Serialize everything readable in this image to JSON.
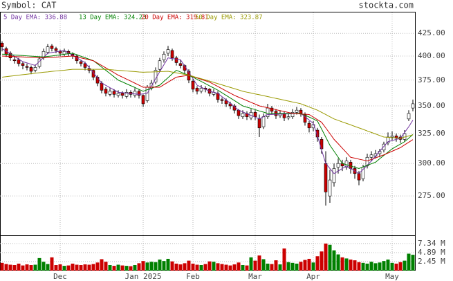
{
  "header": {
    "symbol": "Symbol: CAT",
    "site": "stockta.com"
  },
  "chart_data": [
    {
      "type": "candlestick",
      "categories": [
        null,
        null,
        null,
        null,
        null,
        null,
        null,
        null,
        null,
        null,
        null,
        null,
        null,
        null,
        "Dec",
        null,
        null,
        null,
        null,
        null,
        null,
        null,
        null,
        null,
        null,
        null,
        null,
        null,
        null,
        null,
        null,
        null,
        null,
        null,
        "Jan 2025",
        null,
        null,
        null,
        null,
        null,
        null,
        null,
        null,
        null,
        null,
        null,
        "Feb",
        null,
        null,
        null,
        null,
        null,
        null,
        null,
        null,
        null,
        null,
        null,
        null,
        null,
        null,
        "Mar",
        null,
        null,
        null,
        null,
        null,
        null,
        null,
        null,
        null,
        null,
        null,
        null,
        null,
        "Apr",
        null,
        null,
        null,
        null,
        null,
        null,
        null,
        null,
        null,
        null,
        null,
        null,
        null,
        null,
        null,
        null,
        null,
        null,
        "May",
        null,
        null,
        null,
        null,
        null
      ],
      "open": [
        414,
        408,
        403,
        396,
        396,
        392,
        389,
        388,
        385,
        389,
        398,
        404,
        411,
        408,
        405,
        402,
        405,
        402,
        400,
        394,
        392,
        387,
        385,
        378,
        372,
        366,
        361,
        364,
        360,
        362,
        359,
        363,
        360,
        364,
        360,
        355,
        367,
        373,
        386,
        396,
        403,
        406,
        398,
        392,
        390,
        384,
        374,
        367,
        364,
        367,
        366,
        361,
        362,
        356,
        355,
        352,
        350,
        346,
        340,
        343,
        339,
        344,
        338,
        331,
        340,
        348,
        345,
        341,
        343,
        339,
        340,
        344,
        346,
        342,
        334,
        330,
        328,
        320,
        300,
        275,
        285,
        297,
        300,
        297,
        301,
        296,
        292,
        288,
        298,
        305,
        306,
        308,
        311,
        317,
        322,
        323,
        322,
        320,
        338,
        348
      ],
      "high": [
        416,
        410,
        405,
        400,
        398,
        394,
        392,
        390,
        391,
        399,
        408,
        413,
        413,
        410,
        407,
        408,
        407,
        404,
        402,
        396,
        394,
        390,
        386,
        380,
        374,
        368,
        367,
        366,
        365,
        364,
        366,
        365,
        367,
        366,
        361,
        370,
        375,
        388,
        398,
        405,
        411,
        408,
        400,
        396,
        391,
        386,
        376,
        369,
        370,
        369,
        367,
        366,
        364,
        358,
        357,
        354,
        352,
        347,
        346,
        345,
        347,
        346,
        342,
        343,
        352,
        350,
        347,
        346,
        345,
        343,
        347,
        349,
        348,
        344,
        336,
        336,
        330,
        322,
        310,
        295,
        300,
        304,
        303,
        305,
        303,
        298,
        294,
        299,
        308,
        310,
        311,
        312,
        318,
        326,
        327,
        325,
        324,
        328,
        346,
        356
      ],
      "low": [
        405,
        399,
        395,
        392,
        389,
        386,
        385,
        381,
        383,
        387,
        396,
        402,
        405,
        403,
        400,
        400,
        400,
        397,
        392,
        389,
        385,
        382,
        375,
        369,
        362,
        359,
        359,
        358,
        358,
        357,
        357,
        358,
        358,
        357,
        349,
        353,
        365,
        371,
        384,
        393,
        400,
        395,
        390,
        387,
        382,
        372,
        363,
        361,
        362,
        363,
        359,
        359,
        353,
        352,
        349,
        347,
        343,
        338,
        338,
        337,
        337,
        337,
        322,
        329,
        338,
        342,
        338,
        339,
        336,
        337,
        338,
        342,
        340,
        332,
        326,
        327,
        318,
        308,
        268,
        270,
        282,
        292,
        294,
        295,
        292,
        288,
        283,
        286,
        296,
        302,
        304,
        305,
        309,
        315,
        319,
        318,
        317,
        318,
        336,
        345
      ],
      "close": [
        410,
        402,
        398,
        395,
        392,
        390,
        388,
        384,
        388,
        397,
        405,
        410,
        408,
        406,
        403,
        405,
        403,
        400,
        395,
        392,
        388,
        385,
        378,
        372,
        365,
        362,
        364,
        361,
        362,
        360,
        363,
        361,
        364,
        360,
        352,
        368,
        372,
        385,
        395,
        402,
        407,
        398,
        393,
        390,
        385,
        375,
        366,
        364,
        367,
        366,
        362,
        363,
        356,
        355,
        352,
        350,
        346,
        341,
        343,
        340,
        344,
        340,
        330,
        340,
        348,
        345,
        341,
        343,
        339,
        340,
        344,
        346,
        343,
        335,
        330,
        333,
        322,
        312,
        278,
        287,
        296,
        300,
        298,
        302,
        296,
        292,
        287,
        297,
        305,
        307,
        308,
        310,
        316,
        322,
        323,
        321,
        320,
        325,
        343,
        352
      ],
      "up_color": "#ffffff",
      "down_color": "#cc0000",
      "series": [
        {
          "name": "5 Day EMA: 336.88",
          "color": "#7030a0",
          "values": [
            408,
            405.2,
            402.4,
            399.6,
            396.8,
            394,
            392.7,
            391.3,
            390,
            394.3,
            398.7,
            403,
            403.8,
            404.5,
            405.3,
            406,
            403.4,
            400.8,
            398.2,
            395.6,
            393,
            387.8,
            382.5,
            377.3,
            372,
            369.8,
            367.5,
            365.3,
            363,
            362.6,
            362.2,
            361.8,
            361.4,
            361,
            361.5,
            362,
            369.2,
            376.4,
            383.6,
            390.8,
            398,
            397.3,
            396.7,
            396,
            389.5,
            383,
            376.5,
            370,
            368,
            366,
            364,
            363,
            362,
            358.8,
            355.6,
            352.4,
            349.2,
            346,
            344.4,
            342.8,
            341.2,
            339.6,
            338,
            340,
            342,
            342.1,
            342.3,
            342.4,
            342.5,
            342.6,
            342.8,
            342.9,
            343,
            340,
            337,
            334,
            323,
            311,
            300,
            296,
            292,
            294,
            296,
            298,
            296,
            294,
            292,
            295.3,
            298.7,
            302,
            306,
            310,
            314,
            318,
            319,
            320,
            321,
            326,
            331,
            336.88
          ]
        },
        {
          "name": "13 Day EMA: 324.23",
          "color": "#008000",
          "values": [
            402,
            401.7,
            401.4,
            401.1,
            400.8,
            400.5,
            400.2,
            399.9,
            399.6,
            399.3,
            399,
            399.6,
            400.1,
            400.7,
            401.3,
            401.9,
            402.4,
            403,
            401.4,
            399.8,
            398.2,
            396.6,
            395,
            391.7,
            388.3,
            385,
            381.7,
            378.3,
            375,
            373.2,
            371.3,
            369.5,
            367.7,
            365.8,
            364,
            365.5,
            367,
            368.5,
            370,
            373.8,
            377.5,
            381.3,
            385,
            383.3,
            381.5,
            379.8,
            378,
            375.8,
            373.7,
            371.5,
            369.3,
            367.2,
            365,
            362.5,
            360,
            357.5,
            355,
            352.5,
            350,
            348.8,
            347.7,
            346.5,
            345.3,
            344.2,
            343,
            343,
            343,
            343,
            343,
            343,
            343,
            343,
            343,
            341.3,
            339.7,
            338,
            336,
            329,
            322,
            315,
            310,
            305,
            300,
            299,
            298,
            297,
            296,
            297.3,
            298.5,
            299.8,
            301,
            303.8,
            306.5,
            309.3,
            312,
            314,
            316,
            318,
            321,
            324.23
          ]
        },
        {
          "name": "20 Day EMA: 319.81",
          "color": "#cc0000",
          "values": [
            400,
            399.8,
            399.6,
            399.4,
            399.2,
            399,
            398.8,
            398.6,
            398.4,
            398.2,
            398,
            398.3,
            398.6,
            398.9,
            399.1,
            399.4,
            399.7,
            400,
            399,
            398,
            397,
            396,
            395,
            392.5,
            390,
            387.5,
            385,
            382.5,
            380,
            378,
            376,
            374,
            372,
            370,
            368,
            368,
            368,
            368,
            368,
            370.5,
            373,
            375.5,
            378,
            378.7,
            379.3,
            380,
            378.6,
            377.2,
            375.8,
            374.4,
            373,
            370.8,
            368.7,
            366.5,
            364.3,
            362.2,
            360,
            358.3,
            356.7,
            355,
            353.3,
            351.7,
            350,
            349.1,
            348.3,
            347.4,
            346.5,
            345.6,
            344.8,
            343.9,
            343,
            342.8,
            342.5,
            342.3,
            342,
            339.7,
            337.3,
            335,
            330,
            325,
            320,
            316.3,
            312.5,
            308.8,
            305,
            304.3,
            303.5,
            302.8,
            302,
            303.3,
            304.5,
            305.8,
            307,
            308.5,
            310,
            311.5,
            313,
            315.3,
            317.5,
            319.81
          ]
        },
        {
          "name": "50 Day EMA: 323.87",
          "color": "#999900",
          "values": [
            378,
            378.5,
            379,
            379.5,
            380,
            380.5,
            381,
            381.5,
            382,
            382.5,
            383,
            383.4,
            383.9,
            384.3,
            384.7,
            385.1,
            385.6,
            386,
            386,
            386,
            386,
            386,
            386,
            386,
            386,
            386,
            385.7,
            385.3,
            385,
            384.7,
            384.3,
            384,
            383.7,
            383.3,
            383,
            383.2,
            383.3,
            383.5,
            383.7,
            383.8,
            384,
            383.2,
            382.4,
            381.6,
            380.8,
            380,
            378.8,
            377.6,
            376.4,
            375.2,
            374,
            372.8,
            371.5,
            370.3,
            369,
            367.8,
            366.5,
            365.3,
            364,
            363.1,
            362.3,
            361.4,
            360.6,
            359.7,
            358.9,
            358,
            357.1,
            356.3,
            355.4,
            354.6,
            353.7,
            352.9,
            352,
            350.5,
            349,
            347.5,
            346,
            344,
            342,
            340,
            338,
            336.7,
            335.3,
            334,
            332.7,
            331.3,
            330,
            328.7,
            327.3,
            326,
            324.7,
            323.3,
            322,
            321.8,
            321.5,
            321.3,
            321,
            322,
            323,
            323.87
          ]
        }
      ],
      "ylim": [
        247.5,
        449.5
      ],
      "log_scale": true,
      "grid": true,
      "yticks": [
        {
          "value": 275,
          "label": "275.00"
        },
        {
          "value": 300,
          "label": "300.00"
        },
        {
          "value": 325,
          "label": "325.00"
        },
        {
          "value": 350,
          "label": "350.00"
        },
        {
          "value": 375,
          "label": "375.00"
        },
        {
          "value": 400,
          "label": "400.00"
        },
        {
          "value": 425,
          "label": "425.00"
        }
      ]
    },
    {
      "type": "bar",
      "values": [
        2.1,
        1.8,
        1.6,
        1.5,
        1.9,
        1.4,
        1.7,
        1.5,
        1.6,
        3.4,
        2.4,
        1.8,
        3.6,
        1.5,
        1.7,
        1.3,
        1.4,
        1.9,
        1.6,
        1.5,
        1.7,
        1.6,
        1.8,
        2.2,
        3.1,
        2.4,
        1.5,
        1.3,
        1.6,
        1.4,
        1.3,
        1.2,
        1.5,
        2.0,
        2.6,
        2.2,
        2.4,
        2.3,
        3.0,
        2.6,
        3.2,
        2.5,
        1.9,
        1.7,
        2.0,
        2.7,
        1.9,
        1.6,
        1.5,
        1.8,
        2.5,
        2.4,
        2.0,
        1.8,
        1.6,
        1.4,
        1.7,
        2.2,
        1.5,
        1.4,
        3.6,
        2.7,
        4.1,
        3.1,
        1.9,
        1.8,
        2.8,
        1.7,
        6.0,
        2.3,
        2.1,
        1.9,
        2.4,
        2.9,
        3.2,
        2.2,
        3.9,
        5.2,
        7.34,
        7.0,
        5.5,
        4.4,
        3.6,
        3.3,
        3.0,
        2.8,
        2.3,
        2.1,
        1.9,
        2.4,
        2.0,
        2.2,
        2.6,
        3.0,
        2.1,
        1.9,
        2.3,
        2.7,
        4.6,
        4.3
      ],
      "up_color": "#008000",
      "down_color": "#cc0000",
      "ylim": [
        0,
        9.2
      ],
      "yticks": [
        {
          "value": 2.45,
          "label": "2.45 M"
        },
        {
          "value": 4.89,
          "label": "4.89 M"
        },
        {
          "value": 7.34,
          "label": "7.34 M"
        }
      ]
    }
  ]
}
